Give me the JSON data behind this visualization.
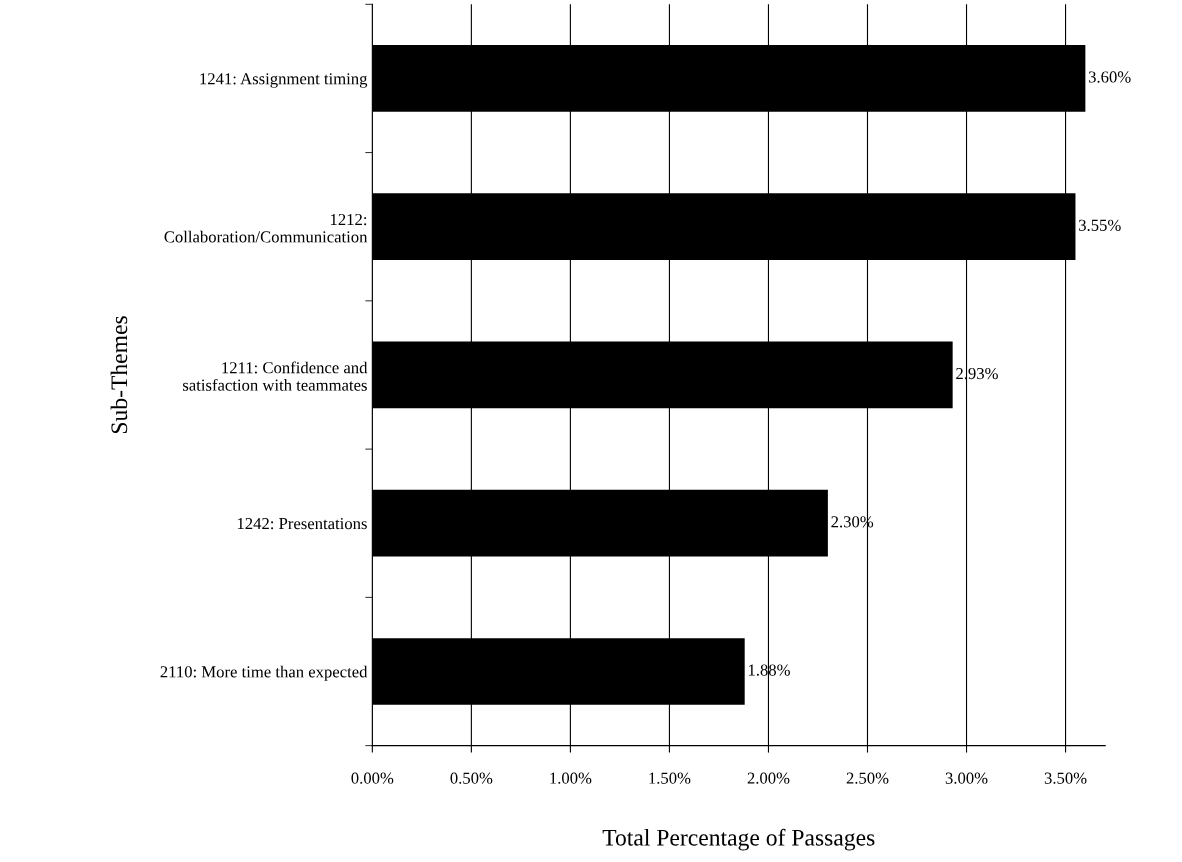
{
  "chart_data": {
    "type": "bar",
    "orientation": "horizontal",
    "xlabel": "Total Percentage of Passages",
    "ylabel": "Sub-Themes",
    "categories": [
      "1241: Assignment timing",
      "1212:\nCollaboration/Communication",
      "1211: Confidence and\nsatisfaction with teammates",
      "1242: Presentations",
      "2110: More time than expected"
    ],
    "values": [
      3.6,
      3.55,
      2.93,
      2.3,
      1.88
    ],
    "value_labels": [
      "3.60%",
      "3.55%",
      "2.93%",
      "2.30%",
      "1.88%"
    ],
    "color": "#000000",
    "xlim": [
      0,
      3.7
    ],
    "xticks": [
      {
        "value": 0,
        "label": "0.00%"
      },
      {
        "value": 0.5,
        "label": "0.50%"
      },
      {
        "value": 1.0,
        "label": "1.00%"
      },
      {
        "value": 1.5,
        "label": "1.50%"
      },
      {
        "value": 2.0,
        "label": "2.00%"
      },
      {
        "value": 2.5,
        "label": "2.50%"
      },
      {
        "value": 3.0,
        "label": "3.00%"
      },
      {
        "value": 3.5,
        "label": "3.50%"
      }
    ],
    "grid": "x",
    "legend": false
  }
}
